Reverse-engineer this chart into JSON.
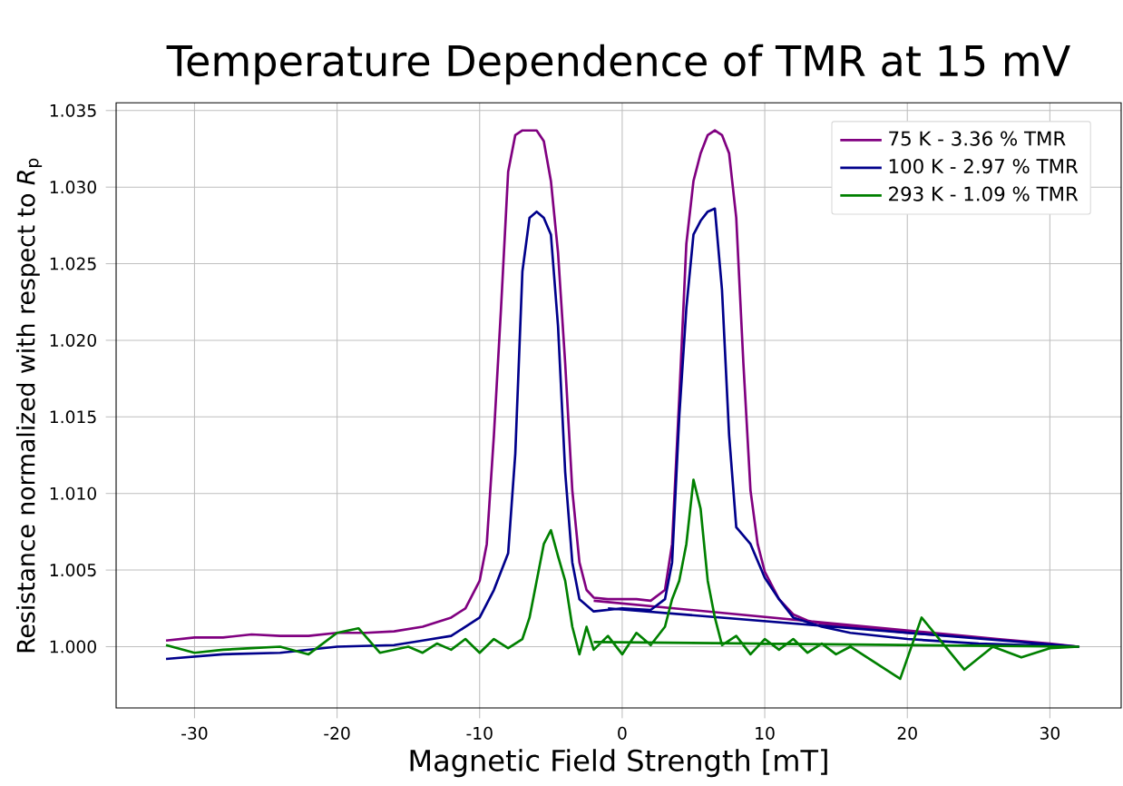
{
  "chart_data": {
    "type": "line",
    "title": "Temperature Dependence of TMR at 15 mV",
    "xlabel": "Magnetic Field Strength [mT]",
    "ylabel": "Resistance normalized with respect to *R*$_{p}$",
    "xlim": [
      -35.5,
      35
    ],
    "ylim": [
      0.996,
      1.0355
    ],
    "xticks": [
      -30,
      -20,
      -10,
      0,
      10,
      20,
      30
    ],
    "yticks": [
      {
        "value": 1.0,
        "label": "1.000"
      },
      {
        "value": 1.005,
        "label": "1.005"
      },
      {
        "value": 1.01,
        "label": "1.010"
      },
      {
        "value": 1.015,
        "label": "1.015"
      },
      {
        "value": 1.02,
        "label": "1.020"
      },
      {
        "value": 1.025,
        "label": "1.025"
      },
      {
        "value": 1.03,
        "label": "1.030"
      },
      {
        "value": 1.035,
        "label": "1.035"
      }
    ],
    "grid": true,
    "legend": "top right",
    "line_style": "solid",
    "series": [
      {
        "name": "75 K - 3.36 % TMR",
        "color": "#800080",
        "x": [
          -32,
          -30,
          -28,
          -26,
          -24,
          -22,
          -20,
          -18,
          -16,
          -14,
          -12,
          -11,
          -10,
          -9.5,
          -9,
          -8.5,
          -8,
          -7.5,
          -7,
          -6,
          -5.5,
          -5,
          -4.5,
          -4,
          -3.5,
          -3,
          -2.5,
          -2,
          -1,
          0,
          1,
          2,
          3,
          3.5,
          4,
          4.5,
          5,
          5.5,
          6,
          6.5,
          7,
          7.5,
          8,
          8.5,
          9,
          9.5,
          10,
          11,
          12,
          13,
          14,
          16,
          20,
          25,
          30,
          32,
          -2
        ],
        "values": [
          1.0004,
          1.0006,
          1.0006,
          1.0008,
          1.0007,
          1.0007,
          1.0009,
          1.0009,
          1.001,
          1.0013,
          1.0019,
          1.0025,
          1.0043,
          1.0067,
          1.0138,
          1.0221,
          1.031,
          1.0334,
          1.0337,
          1.0337,
          1.033,
          1.0304,
          1.0257,
          1.0185,
          1.0102,
          1.0055,
          1.0037,
          1.0032,
          1.0031,
          1.0031,
          1.0031,
          1.003,
          1.0037,
          1.0067,
          1.0162,
          1.0263,
          1.0304,
          1.0322,
          1.0334,
          1.0337,
          1.0334,
          1.0322,
          1.028,
          1.0185,
          1.0102,
          1.0067,
          1.0049,
          1.0031,
          1.0021,
          1.0017,
          1.0015,
          1.0013,
          1.0009,
          1.0006,
          1.0002,
          1.0,
          1.003
        ]
      },
      {
        "name": "100 K - 2.97 % TMR",
        "color": "#00008b",
        "x": [
          -32,
          -28,
          -24,
          -20,
          -16,
          -14,
          -12,
          -10,
          -9,
          -8,
          -7.5,
          -7,
          -6.5,
          -6,
          -5.5,
          -5,
          -4.5,
          -4,
          -3.5,
          -3,
          -2,
          0,
          2,
          3,
          3.5,
          4,
          4.5,
          5,
          5.5,
          6,
          6.5,
          7,
          7.5,
          8,
          9,
          10,
          11,
          12,
          14,
          16,
          20,
          25,
          32,
          -1
        ],
        "values": [
          0.9992,
          0.9995,
          0.9996,
          1.0,
          1.0001,
          1.0004,
          1.0007,
          1.0019,
          1.0037,
          1.0061,
          1.0126,
          1.0245,
          1.028,
          1.0284,
          1.028,
          1.0269,
          1.0209,
          1.0114,
          1.0055,
          1.0031,
          1.0023,
          1.0025,
          1.0024,
          1.0031,
          1.0055,
          1.015,
          1.0221,
          1.0269,
          1.0278,
          1.0284,
          1.0286,
          1.0233,
          1.0138,
          1.0078,
          1.0067,
          1.0045,
          1.0031,
          1.0019,
          1.0013,
          1.0009,
          1.0005,
          1.0002,
          1.0,
          1.0025
        ]
      },
      {
        "name": "293 K - 1.09 % TMR",
        "color": "#008000",
        "x": [
          -32,
          -30,
          -28,
          -26,
          -24,
          -22,
          -20,
          -18.5,
          -17,
          -15,
          -14,
          -13,
          -12,
          -11,
          -10,
          -9,
          -8,
          -7,
          -6.5,
          -6,
          -5.5,
          -5,
          -4.5,
          -4,
          -3.5,
          -3,
          -2.5,
          -2,
          -1,
          0,
          1,
          2,
          3,
          3.5,
          4,
          4.5,
          5,
          5.5,
          6,
          6.5,
          7,
          8,
          9,
          10,
          11,
          12,
          13,
          14,
          15,
          16,
          19.5,
          21,
          24,
          26,
          28,
          30,
          32,
          -2
        ],
        "values": [
          1.0001,
          0.9996,
          0.9998,
          0.9999,
          1.0,
          0.9995,
          1.0009,
          1.0012,
          0.9996,
          1.0,
          0.9996,
          1.0002,
          0.9998,
          1.0005,
          0.9996,
          1.0005,
          0.9999,
          1.0005,
          1.0019,
          1.0043,
          1.0067,
          1.0076,
          1.0059,
          1.0043,
          1.0013,
          0.9995,
          1.0013,
          0.9998,
          1.0007,
          0.9995,
          1.0009,
          1.0001,
          1.0013,
          1.0031,
          1.0043,
          1.0067,
          1.0109,
          1.009,
          1.0043,
          1.0019,
          1.0001,
          1.0007,
          0.9995,
          1.0005,
          0.9998,
          1.0005,
          0.9996,
          1.0002,
          0.9995,
          1.0,
          0.9979,
          1.0019,
          0.9985,
          1.0,
          0.9993,
          0.9999,
          1.0,
          1.0003
        ]
      }
    ]
  }
}
